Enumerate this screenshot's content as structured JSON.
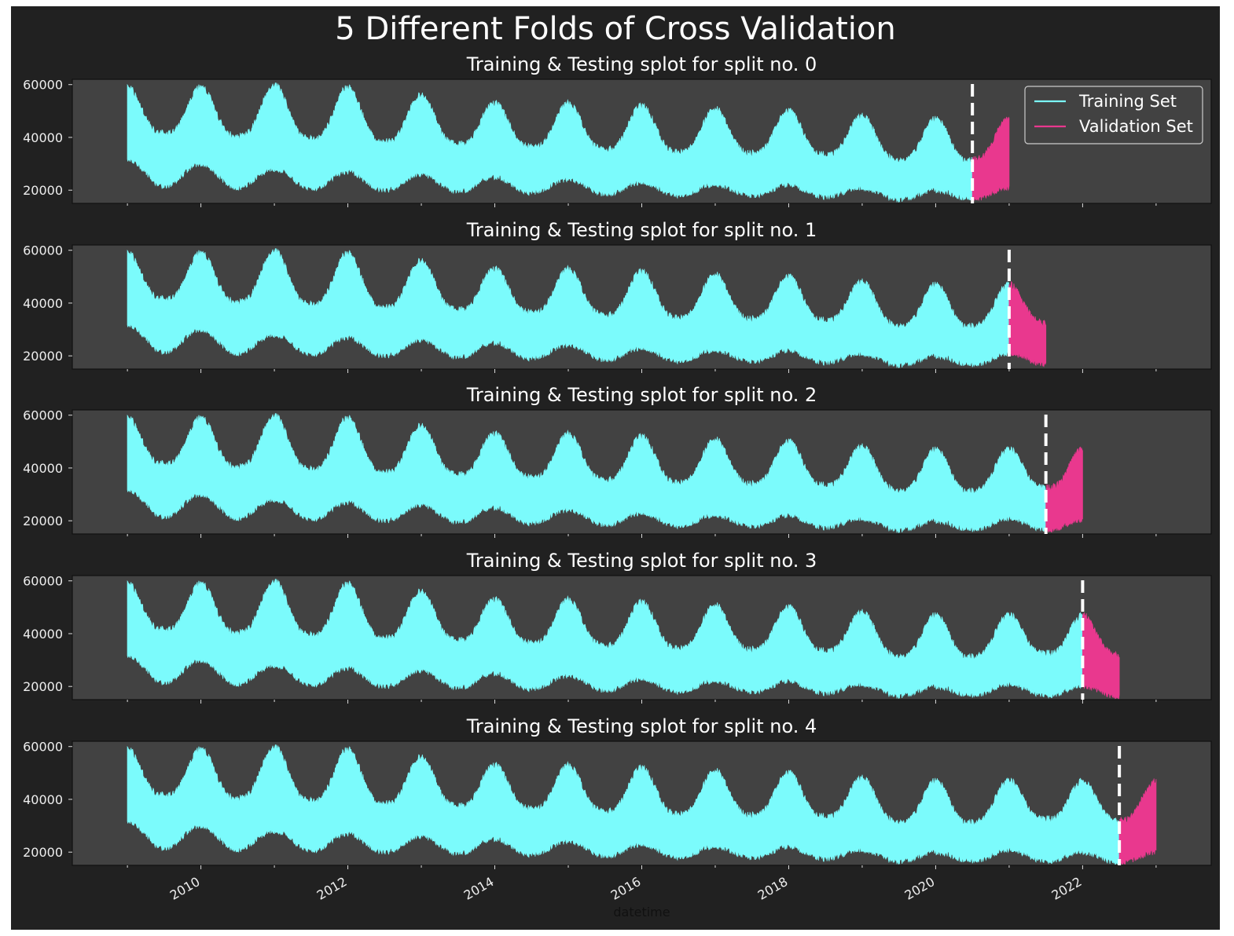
{
  "figure_title": "5 Different Folds of Cross Validation",
  "colors": {
    "figure_bg": "#212121",
    "axes_bg": "#424242",
    "training": "#7bfbfc",
    "validation": "#e9388e",
    "split_line": "#ffffff"
  },
  "chart_data": {
    "type": "area",
    "xlabel": "datetime",
    "ylabel": "",
    "x_ticks": [
      "2010",
      "2012",
      "2014",
      "2016",
      "2018",
      "2020",
      "2022"
    ],
    "y_ticks": [
      "20000",
      "40000",
      "60000"
    ],
    "ylim": [
      15000,
      62000
    ],
    "xlim": [
      "2008-04",
      "2023-10"
    ],
    "data_start": "2009-01",
    "legend": {
      "position": "top-right",
      "entries": [
        "Training Set",
        "Validation Set"
      ]
    },
    "seasonal_envelope": {
      "description_of_values": "approximate upper / lower bounds of the load series",
      "winter_peak_upper": [
        59000,
        59000,
        60000,
        59000,
        56000,
        53000,
        53000,
        52000,
        51000,
        50000,
        48000,
        47000,
        47000,
        47000
      ],
      "summer_low_upper": [
        42000,
        41000,
        40000,
        39000,
        38000,
        37000,
        36000,
        35000,
        34000,
        34000,
        33000,
        30000,
        33000,
        32000
      ],
      "winter_lower": [
        32000,
        30000,
        28000,
        27000,
        26000,
        25000,
        24000,
        23000,
        22000,
        22000,
        21000,
        20000,
        21000,
        20000
      ],
      "summer_lower": [
        22000,
        21000,
        21000,
        20000,
        20000,
        19000,
        19000,
        18000,
        18000,
        18000,
        17000,
        16000,
        17000,
        16000
      ]
    },
    "splits": [
      {
        "title": "Training & Testing splot for split no. 0",
        "train_start": "2009-01",
        "split_date": "2020-07",
        "validation_end": "2021-01"
      },
      {
        "title": "Training & Testing splot for split no. 1",
        "train_start": "2009-01",
        "split_date": "2021-01",
        "validation_end": "2021-07"
      },
      {
        "title": "Training & Testing splot for split no. 2",
        "train_start": "2009-01",
        "split_date": "2021-07",
        "validation_end": "2022-01"
      },
      {
        "title": "Training & Testing splot for split no. 3",
        "train_start": "2009-01",
        "split_date": "2022-01",
        "validation_end": "2022-07"
      },
      {
        "title": "Training & Testing splot for split no. 4",
        "train_start": "2009-01",
        "split_date": "2022-07",
        "validation_end": "2023-01"
      }
    ]
  }
}
